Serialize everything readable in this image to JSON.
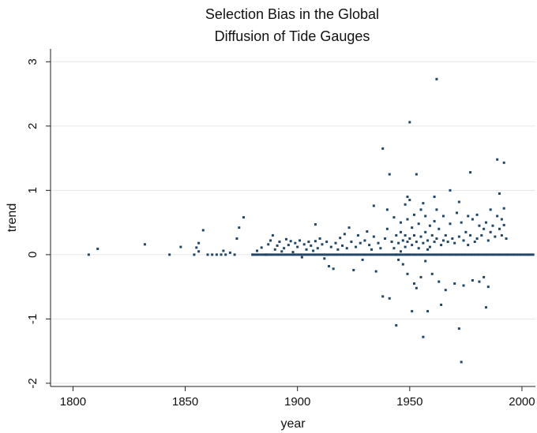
{
  "chart_data": {
    "type": "scatter",
    "title": [
      "Selection Bias in the Global",
      "Diffusion of Tide Gauges"
    ],
    "xlabel": "year",
    "ylabel": "trend",
    "xlim": [
      1790,
      2006
    ],
    "ylim": [
      -2.05,
      3.2
    ],
    "xticks": [
      1800,
      1850,
      1900,
      1950,
      2000
    ],
    "yticks": [
      -2,
      -1,
      0,
      1,
      2,
      3
    ],
    "grid": true,
    "marker_color": "#1f4666",
    "points": [
      [
        1807,
        0
      ],
      [
        1811,
        0.09
      ],
      [
        1832,
        0.16
      ],
      [
        1843,
        0
      ],
      [
        1848,
        0.12
      ],
      [
        1854,
        0
      ],
      [
        1855,
        0.11
      ],
      [
        1856,
        0.18
      ],
      [
        1856,
        0.05
      ],
      [
        1858,
        0.38
      ],
      [
        1860,
        0
      ],
      [
        1862,
        0
      ],
      [
        1864,
        0
      ],
      [
        1866,
        0
      ],
      [
        1867,
        0.06
      ],
      [
        1868,
        0
      ],
      [
        1870,
        0.03
      ],
      [
        1872,
        0
      ],
      [
        1873,
        0.25
      ],
      [
        1874,
        0.42
      ],
      [
        1876,
        0.58
      ],
      [
        1880,
        0
      ],
      [
        1882,
        0.06
      ],
      [
        1884,
        0.11
      ],
      [
        1886,
        0
      ],
      [
        1887,
        0.16
      ],
      [
        1888,
        0.22
      ],
      [
        1889,
        0.3
      ],
      [
        1890,
        0.08
      ],
      [
        1891,
        0.14
      ],
      [
        1892,
        0.2
      ],
      [
        1893,
        0.05
      ],
      [
        1894,
        0.1
      ],
      [
        1895,
        0.24
      ],
      [
        1896,
        0.15
      ],
      [
        1897,
        0.21
      ],
      [
        1898,
        0.04
      ],
      [
        1899,
        0.18
      ],
      [
        1900,
        0.12
      ],
      [
        1901,
        0.22
      ],
      [
        1902,
        -0.04
      ],
      [
        1903,
        0.16
      ],
      [
        1904,
        0.08
      ],
      [
        1905,
        0.2
      ],
      [
        1906,
        0.14
      ],
      [
        1907,
        0.06
      ],
      [
        1908,
        0.47
      ],
      [
        1908,
        0.21
      ],
      [
        1909,
        0.1
      ],
      [
        1910,
        0.25
      ],
      [
        1911,
        0.16
      ],
      [
        1912,
        -0.06
      ],
      [
        1913,
        0.2
      ],
      [
        1914,
        -0.18
      ],
      [
        1915,
        0.12
      ],
      [
        1916,
        -0.22
      ],
      [
        1917,
        0.18
      ],
      [
        1918,
        0.08
      ],
      [
        1919,
        0.26
      ],
      [
        1920,
        0.14
      ],
      [
        1921,
        0.32
      ],
      [
        1922,
        0.1
      ],
      [
        1923,
        0.42
      ],
      [
        1924,
        0.2
      ],
      [
        1925,
        -0.24
      ],
      [
        1926,
        0.12
      ],
      [
        1927,
        0.3
      ],
      [
        1928,
        0.18
      ],
      [
        1929,
        -0.08
      ],
      [
        1930,
        0.22
      ],
      [
        1931,
        0.36
      ],
      [
        1932,
        0.15
      ],
      [
        1933,
        0.08
      ],
      [
        1934,
        0.76
      ],
      [
        1934,
        0.28
      ],
      [
        1935,
        -0.26
      ],
      [
        1936,
        0.18
      ],
      [
        1937,
        0.1
      ],
      [
        1938,
        -0.65
      ],
      [
        1938,
        1.65
      ],
      [
        1939,
        0.25
      ],
      [
        1940,
        0.7
      ],
      [
        1940,
        0.4
      ],
      [
        1941,
        1.25
      ],
      [
        1941,
        -0.68
      ],
      [
        1942,
        0.2
      ],
      [
        1943,
        0.58
      ],
      [
        1943,
        0.1
      ],
      [
        1944,
        -1.1
      ],
      [
        1944,
        0.3
      ],
      [
        1945,
        0.18
      ],
      [
        1945,
        -0.08
      ],
      [
        1946,
        0.35
      ],
      [
        1946,
        0.5
      ],
      [
        1947,
        0.22
      ],
      [
        1947,
        -0.15
      ],
      [
        1948,
        0.78
      ],
      [
        1948,
        0.3
      ],
      [
        1948,
        0.12
      ],
      [
        1949,
        0.9
      ],
      [
        1949,
        0.55
      ],
      [
        1949,
        0.2
      ],
      [
        1949,
        -0.3
      ],
      [
        1950,
        2.06
      ],
      [
        1950,
        0.85
      ],
      [
        1950,
        0.25
      ],
      [
        1951,
        -0.88
      ],
      [
        1951,
        0.42
      ],
      [
        1951,
        0.15
      ],
      [
        1952,
        0.62
      ],
      [
        1952,
        -0.45
      ],
      [
        1952,
        0.3
      ],
      [
        1953,
        1.25
      ],
      [
        1953,
        0.2
      ],
      [
        1953,
        -0.52
      ],
      [
        1954,
        0.48
      ],
      [
        1954,
        0.1
      ],
      [
        1955,
        0.7
      ],
      [
        1955,
        -0.35
      ],
      [
        1955,
        0.28
      ],
      [
        1956,
        -1.28
      ],
      [
        1956,
        0.8
      ],
      [
        1956,
        0.18
      ],
      [
        1957,
        0.35
      ],
      [
        1957,
        -0.1
      ],
      [
        1957,
        0.6
      ],
      [
        1958,
        -0.88
      ],
      [
        1958,
        0.22
      ],
      [
        1959,
        0.45
      ],
      [
        1959,
        0.12
      ],
      [
        1960,
        0.3
      ],
      [
        1960,
        -0.3
      ],
      [
        1961,
        0.52
      ],
      [
        1961,
        0.2
      ],
      [
        1962,
        2.73
      ],
      [
        1962,
        0.7
      ],
      [
        1962,
        0.25
      ],
      [
        1963,
        -0.42
      ],
      [
        1963,
        0.4
      ],
      [
        1964,
        0.15
      ],
      [
        1964,
        -0.78
      ],
      [
        1965,
        0.6
      ],
      [
        1965,
        0.22
      ],
      [
        1966,
        -0.55
      ],
      [
        1966,
        0.3
      ],
      [
        1967,
        0.2
      ],
      [
        1968,
        1.0
      ],
      [
        1968,
        0.48
      ],
      [
        1969,
        0.25
      ],
      [
        1970,
        -0.45
      ],
      [
        1970,
        0.18
      ],
      [
        1971,
        0.65
      ],
      [
        1972,
        0.82
      ],
      [
        1972,
        -1.15
      ],
      [
        1972,
        0.28
      ],
      [
        1973,
        -1.67
      ],
      [
        1973,
        0.5
      ],
      [
        1974,
        -0.48
      ],
      [
        1974,
        0.22
      ],
      [
        1975,
        0.35
      ],
      [
        1976,
        0.6
      ],
      [
        1976,
        0.15
      ],
      [
        1977,
        1.28
      ],
      [
        1977,
        0.3
      ],
      [
        1978,
        -0.4
      ],
      [
        1978,
        0.55
      ],
      [
        1979,
        0.2
      ],
      [
        1980,
        0.62
      ],
      [
        1980,
        0.25
      ],
      [
        1981,
        -0.42
      ],
      [
        1981,
        0.45
      ],
      [
        1982,
        0.3
      ],
      [
        1983,
        -0.35
      ],
      [
        1983,
        0.4
      ],
      [
        1984,
        -0.82
      ],
      [
        1984,
        0.5
      ],
      [
        1985,
        -0.5
      ],
      [
        1985,
        0.22
      ],
      [
        1986,
        0.7
      ],
      [
        1986,
        0.35
      ],
      [
        1987,
        0.45
      ],
      [
        1988,
        0.28
      ],
      [
        1989,
        1.48
      ],
      [
        1989,
        0.6
      ],
      [
        1990,
        0.95
      ],
      [
        1990,
        0.4
      ],
      [
        1991,
        0.55
      ],
      [
        1991,
        0.3
      ],
      [
        1992,
        1.43
      ],
      [
        1992,
        0.72
      ],
      [
        1992,
        0.46
      ],
      [
        1993,
        0.25
      ],
      [
        1961,
        0.9
      ],
      [
        1946,
        0.05
      ],
      [
        1958,
        0.08
      ],
      [
        1944,
        0.0
      ]
    ],
    "zero_run": [
      1880,
      2005
    ]
  }
}
